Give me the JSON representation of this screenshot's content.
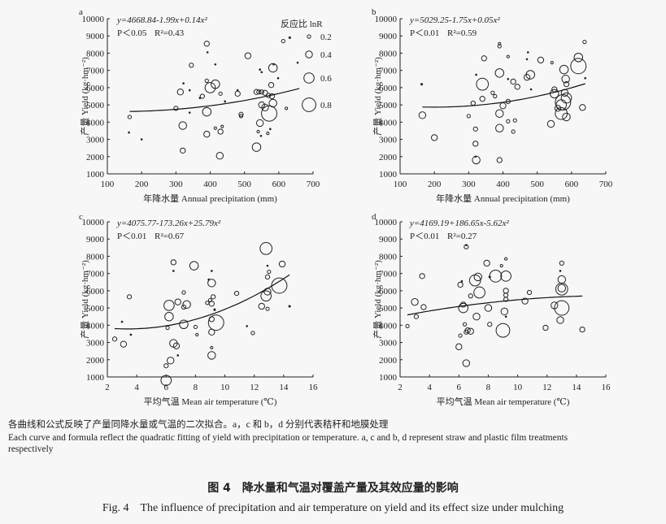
{
  "chart_data": [
    {
      "panel": "a",
      "type": "scatter",
      "equation": "y=4668.84-1.99x+0.14x²",
      "p_text": "P＜0.05",
      "r2_text": "R²=0.43",
      "xlabel": "年降水量 Annual precipitation (mm)",
      "ylabel": "产量 Yield (kg·hm⁻²)",
      "xlim": [
        100,
        700
      ],
      "ylim": [
        1000,
        10000
      ],
      "xticks": [
        100,
        200,
        300,
        400,
        500,
        600,
        700
      ],
      "yticks": [
        1000,
        2000,
        3000,
        4000,
        5000,
        6000,
        7000,
        8000,
        9000,
        10000
      ],
      "legend": {
        "title": "反应比 lnR",
        "sizes": [
          0.2,
          0.4,
          0.6,
          0.8
        ],
        "labels": [
          "0.2",
          "0.4",
          "0.6",
          "0.8"
        ]
      },
      "fit_points": [
        [
          165,
          4620
        ],
        [
          400,
          4950
        ],
        [
          660,
          5950
        ]
      ],
      "points": [
        [
          165,
          4300,
          0.2
        ],
        [
          163,
          3400,
          0.05
        ],
        [
          200,
          3000,
          0.08
        ],
        [
          300,
          4800,
          0.25
        ],
        [
          313,
          5750,
          0.35
        ],
        [
          320,
          3800,
          0.45
        ],
        [
          320,
          2350,
          0.3
        ],
        [
          322,
          6250,
          0.03
        ],
        [
          340,
          5850,
          0.07
        ],
        [
          340,
          4550,
          0.07
        ],
        [
          345,
          7300,
          0.25
        ],
        [
          370,
          5400,
          0.08
        ],
        [
          377,
          5500,
          0.25
        ],
        [
          390,
          8550,
          0.3
        ],
        [
          392,
          8050,
          0.07
        ],
        [
          390,
          6400,
          0.2
        ],
        [
          400,
          6000,
          0.6
        ],
        [
          390,
          4600,
          0.5
        ],
        [
          390,
          3300,
          0.35
        ],
        [
          415,
          6200,
          0.5
        ],
        [
          415,
          7350,
          0.07
        ],
        [
          430,
          5650,
          0.2
        ],
        [
          415,
          3650,
          0.15
        ],
        [
          435,
          3750,
          0.15
        ],
        [
          430,
          3450,
          0.3
        ],
        [
          428,
          2050,
          0.4
        ],
        [
          443,
          5200,
          0.08
        ],
        [
          480,
          5650,
          0.3
        ],
        [
          480,
          5850,
          0.07
        ],
        [
          490,
          4450,
          0.25
        ],
        [
          490,
          4350,
          0.2
        ],
        [
          510,
          7850,
          0.35
        ],
        [
          535,
          5750,
          0.3
        ],
        [
          542,
          5750,
          0.25
        ],
        [
          550,
          5750,
          0.25
        ],
        [
          560,
          5700,
          0.3
        ],
        [
          570,
          5550,
          0.25
        ],
        [
          580,
          5500,
          0.3
        ],
        [
          545,
          3950,
          0.4
        ],
        [
          540,
          3450,
          0.15
        ],
        [
          548,
          3200,
          0.07
        ],
        [
          535,
          2550,
          0.5
        ],
        [
          550,
          5000,
          0.35
        ],
        [
          560,
          4850,
          0.4
        ],
        [
          572,
          4500,
          0.9
        ],
        [
          583,
          5100,
          0.45
        ],
        [
          578,
          6150,
          0.3
        ],
        [
          583,
          7150,
          0.5
        ],
        [
          585,
          7350,
          0.08
        ],
        [
          545,
          7050,
          0.08
        ],
        [
          550,
          6900,
          0.06
        ],
        [
          568,
          3350,
          0.15
        ],
        [
          575,
          3600,
          0.06
        ],
        [
          613,
          8700,
          0.2
        ],
        [
          632,
          8900,
          0.1
        ],
        [
          622,
          4800,
          0.15
        ],
        [
          598,
          6550,
          0.06
        ],
        [
          655,
          7450,
          0.05
        ]
      ]
    },
    {
      "panel": "b",
      "type": "scatter",
      "equation": "y=5029.25-1.75x+0.05x²",
      "p_text": "P＜0.01",
      "r2_text": "R²=0.59",
      "xlabel": "年降水量 Annual precipitation (mm)",
      "ylabel": "产量 Yield (kg·hm⁻²)",
      "xlim": [
        100,
        700
      ],
      "ylim": [
        1000,
        10000
      ],
      "xticks": [
        100,
        200,
        300,
        400,
        500,
        600,
        700
      ],
      "yticks": [
        1000,
        2000,
        3000,
        4000,
        5000,
        6000,
        7000,
        8000,
        9000,
        10000
      ],
      "fit_points": [
        [
          165,
          4880
        ],
        [
          400,
          5150
        ],
        [
          640,
          6230
        ]
      ],
      "points": [
        [
          163,
          6200,
          0.1
        ],
        [
          165,
          4400,
          0.4
        ],
        [
          200,
          3100,
          0.35
        ],
        [
          300,
          4350,
          0.2
        ],
        [
          313,
          5100,
          0.25
        ],
        [
          322,
          6750,
          0.07
        ],
        [
          320,
          3600,
          0.25
        ],
        [
          320,
          2750,
          0.3
        ],
        [
          322,
          1800,
          0.45
        ],
        [
          320,
          2000,
          0.06
        ],
        [
          340,
          6200,
          0.7
        ],
        [
          340,
          5350,
          0.3
        ],
        [
          345,
          7700,
          0.3
        ],
        [
          370,
          5700,
          0.2
        ],
        [
          377,
          5500,
          0.2
        ],
        [
          390,
          8550,
          0.15
        ],
        [
          390,
          8400,
          0.2
        ],
        [
          390,
          6850,
          0.5
        ],
        [
          390,
          4500,
          0.45
        ],
        [
          390,
          3650,
          0.45
        ],
        [
          390,
          1800,
          0.3
        ],
        [
          400,
          4950,
          0.35
        ],
        [
          415,
          7800,
          0.15
        ],
        [
          415,
          6500,
          0.07
        ],
        [
          415,
          5200,
          0.25
        ],
        [
          415,
          4050,
          0.2
        ],
        [
          430,
          6350,
          0.3
        ],
        [
          435,
          4100,
          0.2
        ],
        [
          430,
          3450,
          0.2
        ],
        [
          442,
          6050,
          0.3
        ],
        [
          470,
          7650,
          0.07
        ],
        [
          473,
          8050,
          0.07
        ],
        [
          470,
          6600,
          0.35
        ],
        [
          480,
          6750,
          0.5
        ],
        [
          482,
          5900,
          0.07
        ],
        [
          510,
          7600,
          0.35
        ],
        [
          543,
          7450,
          0.15
        ],
        [
          540,
          3900,
          0.4
        ],
        [
          550,
          5900,
          0.3
        ],
        [
          550,
          5650,
          0.5
        ],
        [
          560,
          4800,
          0.35
        ],
        [
          570,
          5000,
          0.6
        ],
        [
          570,
          4500,
          0.7
        ],
        [
          575,
          5150,
          0.9
        ],
        [
          578,
          7050,
          0.5
        ],
        [
          580,
          5700,
          0.4
        ],
        [
          583,
          6500,
          0.45
        ],
        [
          585,
          6200,
          0.3
        ],
        [
          585,
          5400,
          0.6
        ],
        [
          585,
          4300,
          0.45
        ],
        [
          620,
          7750,
          0.5
        ],
        [
          620,
          7250,
          0.9
        ],
        [
          632,
          4850,
          0.35
        ],
        [
          638,
          8650,
          0.2
        ],
        [
          640,
          6550,
          0.07
        ]
      ]
    },
    {
      "panel": "c",
      "type": "scatter",
      "equation": "y=4075.77-173.26x+25.79x²",
      "p_text": "P＜0.01",
      "r2_text": "R²=0.67",
      "xlabel": "平均气温 Mean air temperature (℃)",
      "ylabel": "产量 Yield (kg·hm⁻²)",
      "xlim": [
        2,
        16
      ],
      "ylim": [
        1000,
        10000
      ],
      "xticks": [
        2,
        4,
        6,
        8,
        10,
        12,
        14,
        16
      ],
      "yticks": [
        1000,
        2000,
        3000,
        4000,
        5000,
        6000,
        7000,
        8000,
        9000,
        10000
      ],
      "fit_points": [
        [
          2.5,
          3803
        ],
        [
          8.4,
          4440
        ],
        [
          14.4,
          6928
        ]
      ],
      "points": [
        [
          2.5,
          3200,
          0.25
        ],
        [
          3,
          4200,
          0.08
        ],
        [
          3.1,
          2900,
          0.35
        ],
        [
          3.5,
          5650,
          0.25
        ],
        [
          3.6,
          3450,
          0.08
        ],
        [
          6,
          800,
          0.6
        ],
        [
          6,
          1650,
          0.25
        ],
        [
          6.1,
          3850,
          0.2
        ],
        [
          6.2,
          5150,
          0.6
        ],
        [
          6.2,
          4500,
          0.5
        ],
        [
          6.3,
          1950,
          0.4
        ],
        [
          6.5,
          7650,
          0.3
        ],
        [
          6.5,
          7150,
          0.07
        ],
        [
          6.5,
          2950,
          0.45
        ],
        [
          6.7,
          2800,
          0.35
        ],
        [
          6.8,
          5350,
          0.35
        ],
        [
          6.8,
          2250,
          0.06
        ],
        [
          7.2,
          5900,
          0.2
        ],
        [
          7.2,
          5050,
          0.25
        ],
        [
          7.2,
          4050,
          0.5
        ],
        [
          7.4,
          5200,
          0.45
        ],
        [
          7.9,
          7450,
          0.5
        ],
        [
          8,
          3900,
          0.2
        ],
        [
          8.1,
          3450,
          0.15
        ],
        [
          8.8,
          5300,
          0.2
        ],
        [
          8.9,
          6650,
          0.07
        ],
        [
          9,
          5450,
          0.2
        ],
        [
          9.1,
          5250,
          0.3
        ],
        [
          9.1,
          6450,
          0.45
        ],
        [
          9.2,
          5650,
          0.25
        ],
        [
          9.1,
          7150,
          0.07
        ],
        [
          9.3,
          4900,
          0.1
        ],
        [
          9.1,
          4350,
          0.3
        ],
        [
          9.1,
          3600,
          0.35
        ],
        [
          9.1,
          2700,
          0.15
        ],
        [
          9.1,
          2250,
          0.45
        ],
        [
          9.4,
          4150,
          0.9
        ],
        [
          10.8,
          5850,
          0.25
        ],
        [
          11.9,
          3550,
          0.2
        ],
        [
          11.5,
          3950,
          0.04
        ],
        [
          12.5,
          5100,
          0.35
        ],
        [
          12.8,
          8450,
          0.7
        ],
        [
          12.8,
          5700,
          0.6
        ],
        [
          12.9,
          5950,
          0.4
        ],
        [
          12.9,
          6800,
          0.25
        ],
        [
          12.9,
          4950,
          0.2
        ],
        [
          13,
          7100,
          0.2
        ],
        [
          12.9,
          7450,
          0.05
        ],
        [
          13.7,
          6300,
          0.9
        ],
        [
          13.9,
          7550,
          0.35
        ],
        [
          14.4,
          5100,
          0.1
        ]
      ]
    },
    {
      "panel": "d",
      "type": "scatter",
      "equation": "y=4169.19+186.65x-5.62x²",
      "p_text": "P＜0.01",
      "r2_text": "R²=0.27",
      "xlabel": "平均气温 Mean air temperature (℃)",
      "ylabel": "产量 Yield (kg·hm⁻²)",
      "xlim": [
        2,
        16
      ],
      "ylim": [
        1000,
        10000
      ],
      "xticks": [
        2,
        4,
        6,
        8,
        10,
        12,
        14,
        16
      ],
      "yticks": [
        1000,
        2000,
        3000,
        4000,
        5000,
        6000,
        7000,
        8000,
        9000,
        10000
      ],
      "fit_points": [
        [
          2.5,
          4601
        ],
        [
          8.4,
          5342
        ],
        [
          14.4,
          5692
        ]
      ],
      "points": [
        [
          2.5,
          3950,
          0.2
        ],
        [
          3,
          5350,
          0.4
        ],
        [
          3.1,
          4500,
          0.25
        ],
        [
          3.5,
          6850,
          0.3
        ],
        [
          3.6,
          5050,
          0.3
        ],
        [
          6,
          2750,
          0.35
        ],
        [
          6.1,
          3400,
          0.2
        ],
        [
          6.1,
          6350,
          0.3
        ],
        [
          6.2,
          6550,
          0.07
        ],
        [
          6.3,
          5000,
          0.55
        ],
        [
          6.3,
          5200,
          0.3
        ],
        [
          6.4,
          4050,
          0.2
        ],
        [
          6.5,
          8550,
          0.25
        ],
        [
          6.5,
          8650,
          0.07
        ],
        [
          6.5,
          3600,
          0.25
        ],
        [
          6.5,
          1800,
          0.4
        ],
        [
          6.6,
          3700,
          0.3
        ],
        [
          6.8,
          3650,
          0.35
        ],
        [
          6.8,
          5700,
          0.25
        ],
        [
          7.1,
          6600,
          0.65
        ],
        [
          7.2,
          4500,
          0.4
        ],
        [
          7.3,
          6800,
          0.45
        ],
        [
          7.4,
          5900,
          0.65
        ],
        [
          7.9,
          7600,
          0.35
        ],
        [
          8,
          5000,
          0.4
        ],
        [
          8.1,
          4050,
          0.25
        ],
        [
          8.1,
          6800,
          0.1
        ],
        [
          8.5,
          6850,
          0.7
        ],
        [
          8.9,
          7450,
          0.15
        ],
        [
          9,
          3700,
          0.8
        ],
        [
          9.1,
          4800,
          0.4
        ],
        [
          9.2,
          6850,
          0.6
        ],
        [
          9.2,
          7850,
          0.15
        ],
        [
          9.2,
          6000,
          0.3
        ],
        [
          9.2,
          5750,
          0.25
        ],
        [
          9.2,
          5500,
          0.25
        ],
        [
          9.2,
          4500,
          0.08
        ],
        [
          10.5,
          5400,
          0.35
        ],
        [
          10.8,
          5900,
          0.25
        ],
        [
          11.9,
          3850,
          0.3
        ],
        [
          12.5,
          5150,
          0.4
        ],
        [
          12.9,
          4300,
          0.4
        ],
        [
          13,
          5000,
          0.85
        ],
        [
          13,
          6100,
          0.7
        ],
        [
          13,
          6150,
          0.45
        ],
        [
          13,
          6650,
          0.45
        ],
        [
          13,
          7600,
          0.25
        ],
        [
          12.9,
          7150,
          0.07
        ],
        [
          14.4,
          3750,
          0.3
        ]
      ]
    }
  ],
  "caption": {
    "cn": "各曲线和公式反映了产量同降水量或气温的二次拟合。a，c 和 b，d 分别代表秸秆和地膜处理",
    "en": "Each curve and formula reflect the quadratic fitting of yield with precipitation or temperature. a, c and b, d represent straw and plastic film treatments",
    "en2": "respectively"
  },
  "figure_title": {
    "cn": "图 4　降水量和气温对覆盖产量及其效应量的影响",
    "en": "Fig. 4　The influence of precipitation and air temperature on yield and its effect size under mulching"
  }
}
